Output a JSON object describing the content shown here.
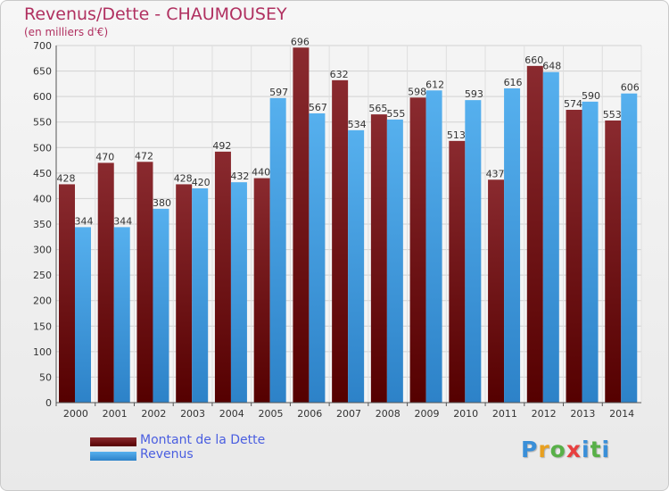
{
  "header": {
    "title": "Revenus/Dette - CHAUMOUSEY",
    "subtitle": "(en milliers d'€)"
  },
  "colors": {
    "debt": "#7a1f24",
    "debt_dark": "#550000",
    "revenue": "#4ea8e8",
    "revenue_dark": "#2d82c8",
    "title": "#b03060",
    "legend_text": "#4a5ee0"
  },
  "legend": [
    {
      "label": "Montant de la Dette",
      "color": "#7a1f24"
    },
    {
      "label": "Revenus",
      "color": "#4ea8e8"
    }
  ],
  "logo": {
    "text": "Proxiti",
    "letter_colors": [
      "#3a8fd8",
      "#e8a020",
      "#58b048",
      "#e84040",
      "#3a8fd8",
      "#58b048"
    ]
  },
  "chart_data": {
    "type": "bar",
    "title": "Revenus/Dette - CHAUMOUSEY",
    "subtitle": "(en milliers d'€)",
    "categories": [
      "2000",
      "2001",
      "2002",
      "2003",
      "2004",
      "2005",
      "2006",
      "2007",
      "2008",
      "2009",
      "2010",
      "2011",
      "2012",
      "2013",
      "2014"
    ],
    "series": [
      {
        "name": "Montant de la Dette",
        "values": [
          428,
          470,
          472,
          428,
          492,
          440,
          696,
          632,
          565,
          598,
          513,
          437,
          660,
          574,
          553
        ]
      },
      {
        "name": "Revenus",
        "values": [
          344,
          344,
          380,
          420,
          432,
          597,
          567,
          534,
          555,
          612,
          593,
          616,
          648,
          590,
          606
        ]
      }
    ],
    "ylim": [
      0,
      700
    ],
    "yticks": [
      0,
      50,
      100,
      150,
      200,
      250,
      300,
      350,
      400,
      450,
      500,
      550,
      600,
      650,
      700
    ],
    "grid": true,
    "legend_position": "bottom-left"
  }
}
